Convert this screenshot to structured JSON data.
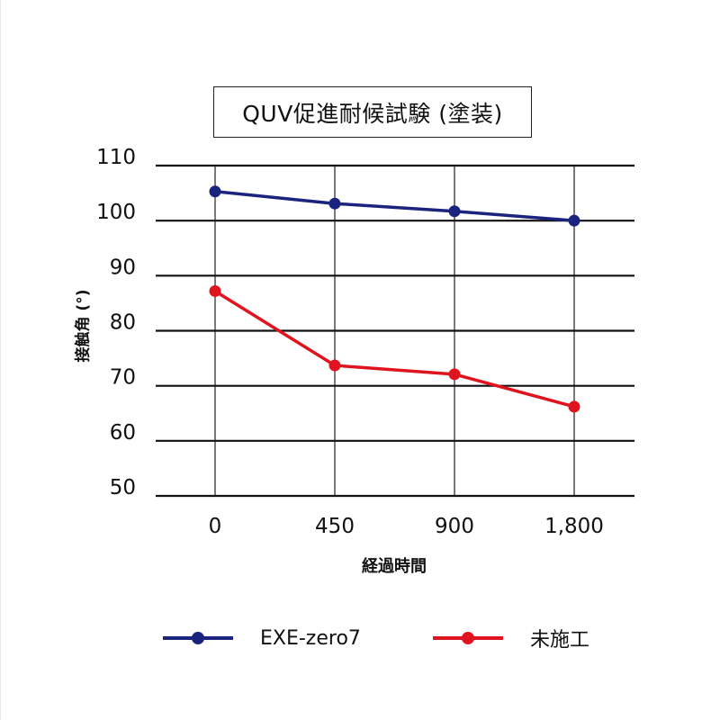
{
  "chart_data": {
    "type": "line",
    "title": "QUV促進耐候試験 (塗装)",
    "xlabel": "経過時間",
    "ylabel": "接触角 (°)",
    "categories": [
      "0",
      "450",
      "900",
      "1,800"
    ],
    "ylim": [
      50,
      110
    ],
    "yticks": [
      "110",
      "100",
      "90",
      "80",
      "70",
      "60",
      "50"
    ],
    "grid": true,
    "legend_position": "bottom",
    "series": [
      {
        "name": "EXE-zero7",
        "color": "#1a237e",
        "values": [
          105.3,
          103.1,
          101.7,
          100.0
        ]
      },
      {
        "name": "未施工",
        "color": "#e0141e",
        "values": [
          87.2,
          73.7,
          72.1,
          66.2
        ]
      }
    ]
  }
}
